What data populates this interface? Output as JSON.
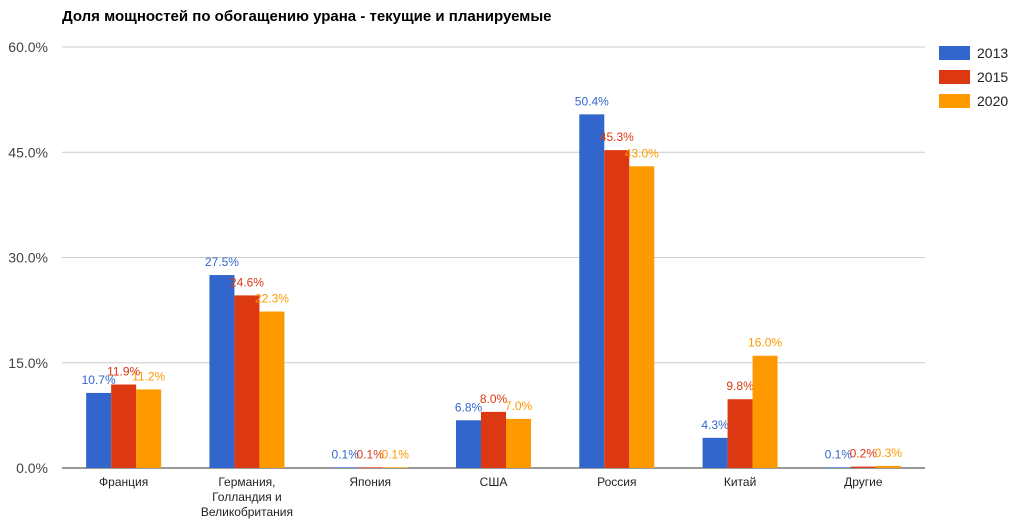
{
  "chart_data": {
    "type": "bar",
    "title": "Доля мощностей по обогащению урана - текущие и планируемые",
    "xlabel": "",
    "ylabel": "",
    "ylim": [
      0,
      60
    ],
    "yticks": [
      "0.0%",
      "15.0%",
      "30.0%",
      "45.0%",
      "60.0%"
    ],
    "ytick_values": [
      0,
      15,
      30,
      45,
      60
    ],
    "grid": true,
    "legend_position": "right",
    "categories": [
      [
        "Франция"
      ],
      [
        "Германия,",
        "Голландия и",
        "Великобритания"
      ],
      [
        "Япония"
      ],
      [
        "США"
      ],
      [
        "Россия"
      ],
      [
        "Китай"
      ],
      [
        "Другие"
      ]
    ],
    "series": [
      {
        "name": "2013",
        "color": "#3366cc",
        "values": [
          10.7,
          27.5,
          0.1,
          6.8,
          50.4,
          4.3,
          0.1
        ],
        "labels": [
          "10.7%",
          "27.5%",
          "0.1%",
          "6.8%",
          "50.4%",
          "4.3%",
          "0.1%"
        ]
      },
      {
        "name": "2015",
        "color": "#dc3912",
        "values": [
          11.9,
          24.6,
          0.1,
          8.0,
          45.3,
          9.8,
          0.2
        ],
        "labels": [
          "11.9%",
          "24.6%",
          "0.1%",
          "8.0%",
          "45.3%",
          "9.8%",
          "0.2%"
        ]
      },
      {
        "name": "2020",
        "color": "#ff9900",
        "values": [
          11.2,
          22.3,
          0.1,
          7.0,
          43.0,
          16.0,
          0.3
        ],
        "labels": [
          "11.2%",
          "22.3%",
          "0.1%",
          "7.0%",
          "43.0%",
          "16.0%",
          "0.3%"
        ]
      }
    ]
  }
}
